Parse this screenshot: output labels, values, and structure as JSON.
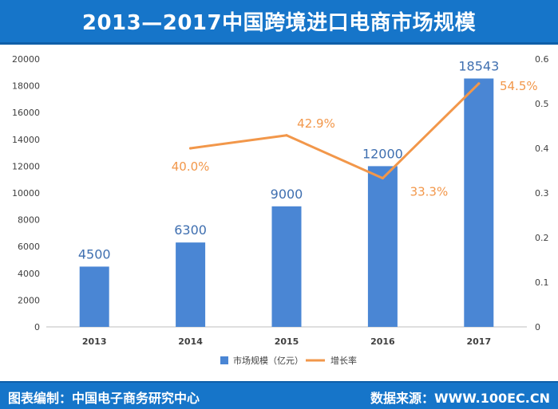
{
  "title": "2013—2017中国跨境进口电商市场规模",
  "footer": {
    "left": "图表编制：中国电子商务研究中心",
    "right": "数据来源：WWW.100EC.CN"
  },
  "colors": {
    "bar": "#4a86d4",
    "bar_label": "#3f6fb0",
    "line": "#f2974a",
    "line_label": "#f2974a",
    "header_bg": "#1675c9"
  },
  "chart_data": {
    "type": "bar",
    "categories": [
      "2013",
      "2014",
      "2015",
      "2016",
      "2017"
    ],
    "series": [
      {
        "name": "市场规模（亿元）",
        "type": "bar",
        "axis": "left",
        "values": [
          4500,
          6300,
          9000,
          12000,
          18543
        ],
        "labels": [
          "4500",
          "6300",
          "9000",
          "12000",
          "18543"
        ]
      },
      {
        "name": "增长率",
        "type": "line",
        "axis": "right",
        "values": [
          null,
          0.4,
          0.429,
          0.333,
          0.545
        ],
        "labels": [
          "",
          "40.0%",
          "42.9%",
          "33.3%",
          "54.5%"
        ]
      }
    ],
    "y_left": {
      "ylim": [
        0,
        20000
      ],
      "ticks": [
        "0",
        "2000",
        "4000",
        "6000",
        "8000",
        "10000",
        "12000",
        "14000",
        "16000",
        "18000",
        "20000"
      ]
    },
    "y_right": {
      "ylim": [
        0,
        0.6
      ],
      "ticks": [
        "0",
        "0.1",
        "0.2",
        "0.3",
        "0.4",
        "0.5",
        "0.6"
      ]
    },
    "legend": {
      "placement": "bottom",
      "entries": [
        "市场规模（亿元）",
        "增长率"
      ]
    },
    "grid": false
  }
}
